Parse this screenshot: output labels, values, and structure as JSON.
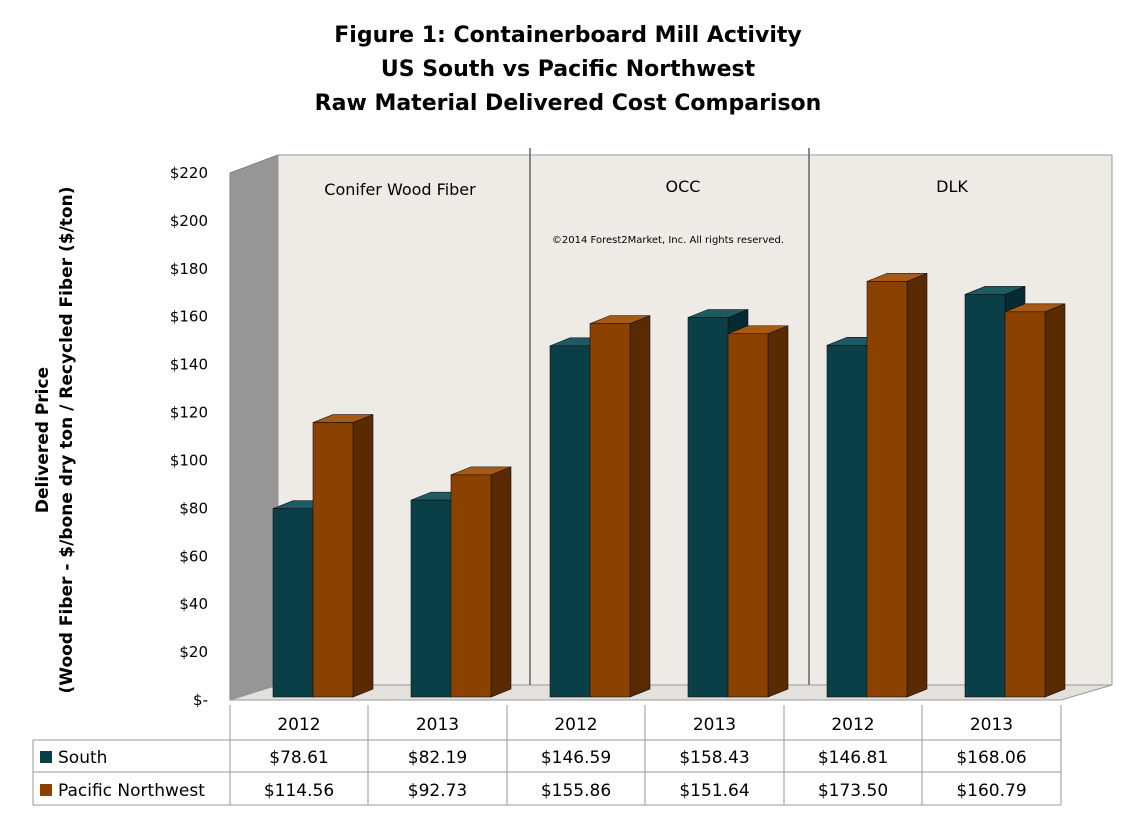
{
  "chart_data": {
    "type": "bar",
    "style": "3d-clustered-column with data table",
    "title": [
      "Figure 1: Containerboard Mill Activity",
      "US South vs Pacific Northwest",
      "Raw Material Delivered Cost Comparison"
    ],
    "ylabel": [
      "Delivered Price",
      "(Wood Fiber - $/bone dry ton / Recycled Fiber ($/ton)"
    ],
    "ylim": [
      0,
      220
    ],
    "yticks": [
      0,
      20,
      40,
      60,
      80,
      100,
      120,
      140,
      160,
      180,
      200,
      220
    ],
    "ytick_labels": [
      "$-",
      "$20",
      "$40",
      "$60",
      "$80",
      "$100",
      "$120",
      "$140",
      "$160",
      "$180",
      "$200",
      "$220"
    ],
    "groups": [
      "Conifer Wood Fiber",
      "OCC",
      "DLK"
    ],
    "categories": [
      "2012",
      "2013",
      "2012",
      "2013",
      "2012",
      "2013"
    ],
    "series": [
      {
        "name": "South",
        "color": "#0b3f47",
        "values": [
          78.61,
          82.19,
          146.59,
          158.43,
          146.81,
          168.06
        ],
        "labels": [
          "$78.61",
          "$82.19",
          "$146.59",
          "$158.43",
          "$146.81",
          "$168.06"
        ]
      },
      {
        "name": "Pacific Northwest",
        "color": "#8b4200",
        "values": [
          114.56,
          92.73,
          155.86,
          151.64,
          173.5,
          160.79
        ],
        "labels": [
          "$114.56",
          "$92.73",
          "$155.86",
          "$151.64",
          "$173.50",
          "$160.79"
        ]
      }
    ],
    "annotation": "©2014 Forest2Market, Inc. All rights reserved.",
    "legend": "data-table",
    "grid": false
  }
}
